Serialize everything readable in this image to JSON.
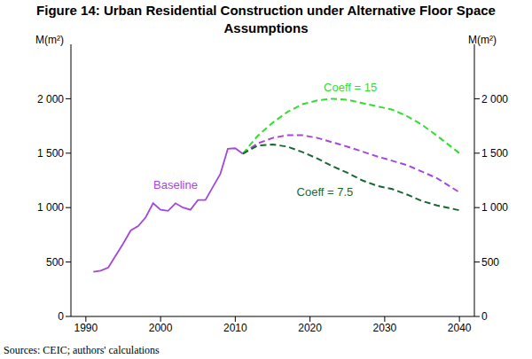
{
  "chart_data": {
    "type": "line",
    "title": "Figure 14: Urban Residential Construction under Alternative Floor Space Assumptions",
    "y_label": "M(m²)",
    "source": "Sources: CEIC; authors' calculations",
    "xlim": [
      1988,
      2042
    ],
    "xticks": [
      1990,
      2000,
      2010,
      2020,
      2030,
      2040
    ],
    "ylim": [
      0,
      2500
    ],
    "yticks": [
      0,
      500,
      {
        "value": 1000,
        "label": "1 000"
      },
      {
        "value": 1500,
        "label": "1 500"
      },
      {
        "value": 2000,
        "label": "2 000"
      }
    ],
    "grid": false,
    "series": [
      {
        "name": "Baseline",
        "color": "#a347e0",
        "line_style": "solid",
        "x": [
          1991,
          1992,
          1993,
          1994,
          1995,
          1996,
          1997,
          1998,
          1999,
          2000,
          2001,
          2002,
          2003,
          2004,
          2005,
          2006,
          2007,
          2008,
          2009,
          2010,
          2011
        ],
        "values": [
          410,
          420,
          450,
          560,
          670,
          790,
          830,
          910,
          1040,
          980,
          970,
          1040,
          1000,
          980,
          1070,
          1070,
          1190,
          1310,
          1540,
          1545,
          1495
        ]
      },
      {
        "name": "Baseline",
        "color": "#a347e0",
        "line_style": "dashed",
        "x": [
          2011,
          2013,
          2015,
          2017,
          2019,
          2021,
          2023,
          2025,
          2027,
          2029,
          2031,
          2033,
          2035,
          2037,
          2040
        ],
        "values": [
          1495,
          1590,
          1640,
          1665,
          1665,
          1640,
          1600,
          1560,
          1515,
          1470,
          1430,
          1390,
          1330,
          1270,
          1140
        ]
      },
      {
        "name": "Coeff = 15",
        "color": "#33dd33",
        "line_style": "dashed",
        "x": [
          2011,
          2013,
          2015,
          2017,
          2019,
          2021,
          2023,
          2025,
          2027,
          2029,
          2031,
          2033,
          2035,
          2037,
          2040
        ],
        "values": [
          1495,
          1660,
          1780,
          1880,
          1950,
          1985,
          2000,
          1990,
          1960,
          1930,
          1900,
          1840,
          1760,
          1660,
          1500
        ]
      },
      {
        "name": "Coeff = 7.5",
        "color": "#1a6633",
        "line_style": "dashed",
        "x": [
          2011,
          2013,
          2015,
          2017,
          2019,
          2021,
          2023,
          2025,
          2027,
          2029,
          2031,
          2033,
          2035,
          2037,
          2040
        ],
        "values": [
          1495,
          1570,
          1580,
          1560,
          1510,
          1450,
          1380,
          1320,
          1250,
          1200,
          1170,
          1120,
          1060,
          1020,
          975
        ]
      }
    ],
    "annotations": [
      {
        "text": "Baseline",
        "x": 2002,
        "y": 1210,
        "color": "#a347e0"
      },
      {
        "text": "Coeff = 15",
        "x": 2025.4,
        "y": 2105,
        "color": "#33dd33"
      },
      {
        "text": "Coeff = 7.5",
        "x": 2022,
        "y": 1145,
        "color": "#1a6633"
      }
    ]
  }
}
